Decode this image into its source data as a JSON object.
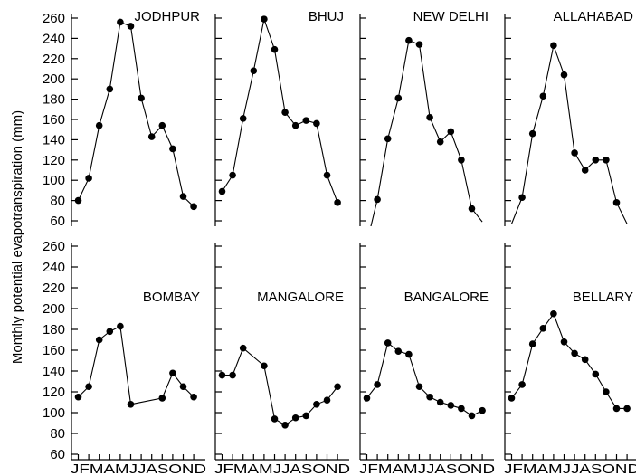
{
  "figure": {
    "ylabel": "Monthly potential evapotranspiration (mm)",
    "yticks": [
      60,
      80,
      100,
      120,
      140,
      160,
      180,
      200,
      220,
      240,
      260
    ],
    "month_letters": [
      "J",
      "F",
      "M",
      "A",
      "M",
      "J",
      "J",
      "A",
      "S",
      "O",
      "N",
      "D"
    ],
    "month_axis_text": "JFMAMJJASOND"
  },
  "chart_data": {
    "type": "line",
    "ylabel": "Monthly potential evapotranspiration (mm)",
    "ylim": [
      60,
      260
    ],
    "x": [
      "J",
      "F",
      "M",
      "A",
      "M",
      "J",
      "J",
      "A",
      "S",
      "O",
      "N",
      "D"
    ],
    "grid": false,
    "panels": [
      {
        "title": "JODHPUR",
        "values": [
          80,
          102,
          154,
          190,
          256,
          252,
          181,
          143,
          154,
          131,
          84,
          74
        ]
      },
      {
        "title": "BHUJ",
        "values": [
          89,
          105,
          161,
          208,
          259,
          229,
          167,
          154,
          159,
          156,
          105,
          78
        ]
      },
      {
        "title": "NEW DELHI",
        "values": [
          38,
          81,
          141,
          181,
          238,
          234,
          162,
          138,
          148,
          120,
          72,
          59
        ]
      },
      {
        "title": "ALLAHABAD",
        "values": [
          57,
          83,
          146,
          183,
          233,
          204,
          127,
          110,
          120,
          120,
          78,
          57
        ]
      },
      {
        "title": "BOMBAY",
        "values": [
          115,
          125,
          170,
          178,
          183,
          108,
          null,
          null,
          114,
          138,
          125,
          115
        ]
      },
      {
        "title": "MANGALORE",
        "values": [
          136,
          136,
          162,
          null,
          145,
          94,
          88,
          95,
          97,
          108,
          112,
          125
        ]
      },
      {
        "title": "BANGALORE",
        "values": [
          114,
          127,
          167,
          159,
          156,
          125,
          115,
          110,
          107,
          104,
          97,
          102
        ]
      },
      {
        "title": "BELLARY",
        "values": [
          114,
          127,
          166,
          181,
          195,
          168,
          157,
          151,
          137,
          120,
          104,
          104
        ]
      }
    ]
  }
}
